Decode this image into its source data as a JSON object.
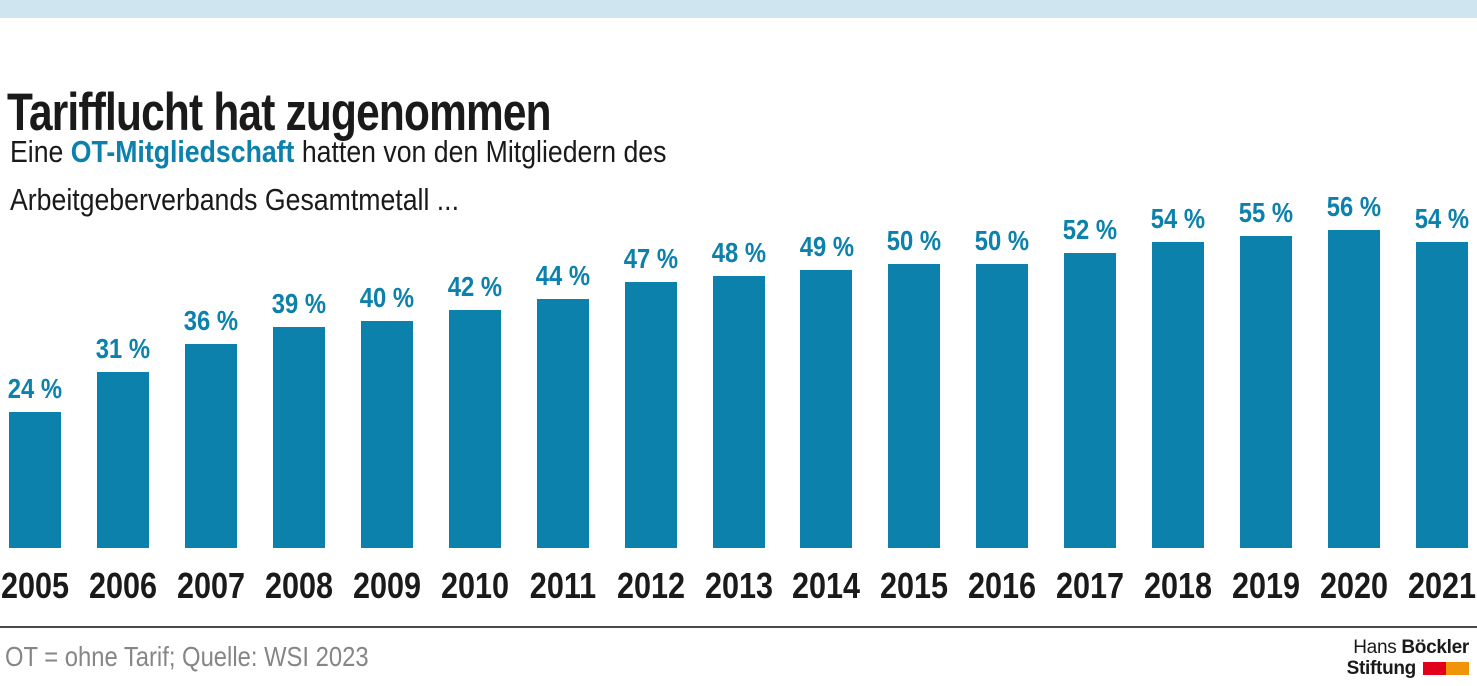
{
  "theme": {
    "accent": "#0b81ac",
    "band": "#cfe5ef",
    "text": "#1a1a1a",
    "muted": "#868686",
    "rule": "#4a4a49",
    "logo_red": "#e2001a",
    "logo_orange": "#f0940a",
    "background": "#ffffff"
  },
  "header": {
    "title": "Tarifflucht hat zugenommen",
    "subtitle_pre": "Eine ",
    "subtitle_accent": "OT-Mitgliedschaft",
    "subtitle_rest": " hatten von den Mitgliedern des",
    "subtitle_line2": "Arbeitgeberverbands Gesamtmetall ..."
  },
  "chart_data": {
    "type": "bar",
    "title": "Tarifflucht hat zugenommen",
    "categories": [
      "2005",
      "2006",
      "2007",
      "2008",
      "2009",
      "2010",
      "2011",
      "2012",
      "2013",
      "2014",
      "2015",
      "2016",
      "2017",
      "2018",
      "2019",
      "2020",
      "2021"
    ],
    "values": [
      24,
      31,
      36,
      39,
      40,
      42,
      44,
      47,
      48,
      49,
      50,
      50,
      52,
      54,
      55,
      56,
      54
    ],
    "value_suffix": " %",
    "unit": "percent",
    "ylim": [
      0,
      60
    ],
    "grid": false,
    "legend": false,
    "value_labels_position": "above-bars",
    "bar_color": "#0b81ac"
  },
  "footer": {
    "note": "OT = ohne Tarif; Quelle: WSI 2023",
    "logo": {
      "line1_regular": "Hans",
      "line1_bold": "Böckler",
      "line2_bold": "Stiftung"
    }
  }
}
